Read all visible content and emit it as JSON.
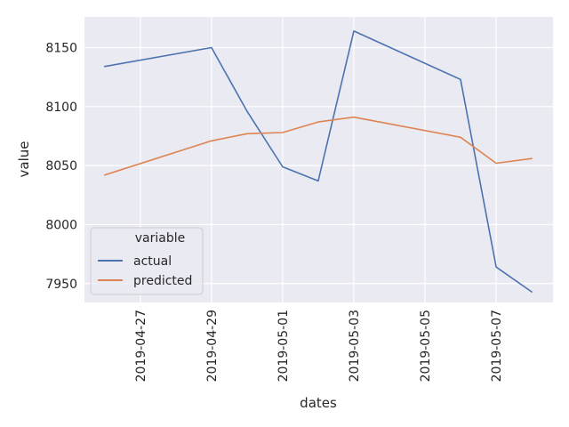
{
  "chart_data": {
    "type": "line",
    "xlabel": "dates",
    "ylabel": "value",
    "x_ticks": [
      "2019-04-27",
      "2019-04-29",
      "2019-05-01",
      "2019-05-03",
      "2019-05-05",
      "2019-05-07"
    ],
    "y_ticks": [
      7950,
      8000,
      8050,
      8100,
      8150
    ],
    "xlim": [
      "2019-04-25T10:20",
      "2019-05-08T14:20"
    ],
    "ylim": [
      7934,
      8176
    ],
    "grid": true,
    "legend": {
      "title": "variable",
      "placement": "lower-left"
    },
    "series": [
      {
        "name": "actual",
        "color": "#4c72b0",
        "points": [
          {
            "x": "2019-04-26",
            "y": 8134
          },
          {
            "x": "2019-04-29",
            "y": 8150
          },
          {
            "x": "2019-04-30",
            "y": 8096
          },
          {
            "x": "2019-05-01",
            "y": 8049
          },
          {
            "x": "2019-05-02",
            "y": 8037
          },
          {
            "x": "2019-05-03",
            "y": 8164
          },
          {
            "x": "2019-05-06",
            "y": 8123
          },
          {
            "x": "2019-05-07",
            "y": 7964
          },
          {
            "x": "2019-05-08",
            "y": 7943
          }
        ]
      },
      {
        "name": "predicted",
        "color": "#dd8452",
        "points": [
          {
            "x": "2019-04-26",
            "y": 8042
          },
          {
            "x": "2019-04-29",
            "y": 8071
          },
          {
            "x": "2019-04-30",
            "y": 8077
          },
          {
            "x": "2019-05-01",
            "y": 8078
          },
          {
            "x": "2019-05-02",
            "y": 8087
          },
          {
            "x": "2019-05-03",
            "y": 8091
          },
          {
            "x": "2019-05-06",
            "y": 8074
          },
          {
            "x": "2019-05-07",
            "y": 8052
          },
          {
            "x": "2019-05-08",
            "y": 8056
          }
        ]
      }
    ]
  }
}
